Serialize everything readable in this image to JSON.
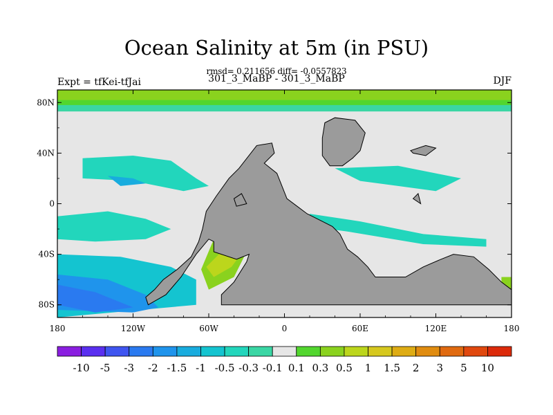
{
  "title": "Ocean Salinity at 5m (in PSU)",
  "stats": "rmsd= 0.211656  diff= -0.0557823",
  "subtitle": "301_3_MaBP - 301_3_MaBP",
  "left_label": "Expt = tfKei-tfJai",
  "right_label": "DJF",
  "chart_data": {
    "type": "heatmap",
    "title": "Ocean Salinity at 5m (in PSU)",
    "projection": "cylindrical equidistant",
    "xlim": [
      -180,
      180
    ],
    "ylim": [
      -90,
      90
    ],
    "x_ticks": [
      {
        "value": -180,
        "label": "180"
      },
      {
        "value": -120,
        "label": "120W"
      },
      {
        "value": -60,
        "label": "60W"
      },
      {
        "value": 0,
        "label": "0"
      },
      {
        "value": 60,
        "label": "60E"
      },
      {
        "value": 120,
        "label": "120E"
      },
      {
        "value": 180,
        "label": "180"
      }
    ],
    "y_ticks": [
      {
        "value": 80,
        "label": "80N"
      },
      {
        "value": 40,
        "label": "40N"
      },
      {
        "value": 0,
        "label": "0"
      },
      {
        "value": -40,
        "label": "40S"
      },
      {
        "value": -80,
        "label": "80S"
      }
    ],
    "colorbar": {
      "levels": [
        "-10",
        "-5",
        "-3",
        "-2",
        "-1.5",
        "-1",
        "-0.5",
        "-0.3",
        "-0.1",
        "0.1",
        "0.3",
        "0.5",
        "1",
        "1.5",
        "2",
        "3",
        "5",
        "10"
      ],
      "colors": [
        "#8a1ee0",
        "#5a2ff0",
        "#3f55f0",
        "#2a7af0",
        "#1f94ec",
        "#18acde",
        "#14c4d0",
        "#22d6bc",
        "#3ad6a4",
        "#e6e6e6",
        "#52d62e",
        "#8ad21e",
        "#bcd61c",
        "#d6c81e",
        "#deac14",
        "#e08c10",
        "#e06a10",
        "#e0480e",
        "#dc2a0a"
      ]
    },
    "land_polygons": [
      {
        "name": "american-continent",
        "points": [
          [
            -103,
            -68
          ],
          [
            -96,
            -60
          ],
          [
            -85,
            -52
          ],
          [
            -74,
            -42
          ],
          [
            -68,
            -30
          ],
          [
            -65,
            -20
          ],
          [
            -62,
            -6
          ],
          [
            -54,
            6
          ],
          [
            -44,
            20
          ],
          [
            -36,
            28
          ],
          [
            -22,
            46
          ],
          [
            -10,
            48
          ],
          [
            -8,
            40
          ],
          [
            -16,
            32
          ],
          [
            -6,
            24
          ],
          [
            2,
            4
          ],
          [
            10,
            -2
          ],
          [
            18,
            -8
          ],
          [
            30,
            -14
          ],
          [
            38,
            -18
          ],
          [
            44,
            -24
          ],
          [
            50,
            -36
          ],
          [
            58,
            -42
          ],
          [
            66,
            -50
          ],
          [
            72,
            -58
          ],
          [
            84,
            -58
          ],
          [
            96,
            -58
          ],
          [
            110,
            -50
          ],
          [
            124,
            -44
          ],
          [
            134,
            -40
          ],
          [
            150,
            -42
          ],
          [
            162,
            -52
          ],
          [
            172,
            -62
          ],
          [
            180,
            -68
          ],
          [
            180,
            -80
          ],
          [
            -50,
            -80
          ],
          [
            -50,
            -72
          ],
          [
            -40,
            -62
          ],
          [
            -30,
            -46
          ],
          [
            -28,
            -40
          ],
          [
            -38,
            -44
          ],
          [
            -56,
            -38
          ],
          [
            -56,
            -30
          ],
          [
            -60,
            -28
          ],
          [
            -70,
            -40
          ],
          [
            -82,
            -58
          ],
          [
            -94,
            -72
          ],
          [
            -108,
            -80
          ],
          [
            -110,
            -74
          ]
        ]
      },
      {
        "name": "northern-landmass",
        "points": [
          [
            32,
            64
          ],
          [
            40,
            68
          ],
          [
            56,
            66
          ],
          [
            64,
            56
          ],
          [
            60,
            42
          ],
          [
            54,
            36
          ],
          [
            46,
            30
          ],
          [
            36,
            30
          ],
          [
            30,
            38
          ],
          [
            30,
            52
          ]
        ]
      },
      {
        "name": "eastern-island",
        "points": [
          [
            100,
            42
          ],
          [
            112,
            46
          ],
          [
            120,
            44
          ],
          [
            112,
            38
          ],
          [
            102,
            40
          ]
        ]
      },
      {
        "name": "small-isle-west",
        "points": [
          [
            -40,
            4
          ],
          [
            -34,
            8
          ],
          [
            -30,
            0
          ],
          [
            -38,
            -2
          ]
        ]
      },
      {
        "name": "small-isle-east",
        "points": [
          [
            102,
            4
          ],
          [
            106,
            8
          ],
          [
            108,
            0
          ]
        ]
      }
    ],
    "contour_regions": [
      {
        "name": "arctic-band",
        "level": "0.3",
        "points": [
          [
            -180,
            90
          ],
          [
            180,
            90
          ],
          [
            180,
            75
          ],
          [
            -180,
            75
          ]
        ]
      },
      {
        "name": "arctic-inner",
        "level": "0.5",
        "points": [
          [
            -180,
            90
          ],
          [
            180,
            90
          ],
          [
            180,
            82
          ],
          [
            -180,
            82
          ]
        ]
      },
      {
        "name": "arctic-lower",
        "level": "-0.1",
        "points": [
          [
            -180,
            78
          ],
          [
            180,
            78
          ],
          [
            180,
            73
          ],
          [
            -180,
            73
          ]
        ]
      },
      {
        "name": "north-pacific-band",
        "level": "-0.3",
        "points": [
          [
            -160,
            36
          ],
          [
            -120,
            38
          ],
          [
            -90,
            34
          ],
          [
            -70,
            20
          ],
          [
            -60,
            14
          ],
          [
            -80,
            10
          ],
          [
            -120,
            18
          ],
          [
            -160,
            20
          ]
        ]
      },
      {
        "name": "north-pacific-inner",
        "level": "-1",
        "points": [
          [
            -140,
            22
          ],
          [
            -120,
            20
          ],
          [
            -110,
            16
          ],
          [
            -130,
            14
          ]
        ]
      },
      {
        "name": "tropical-pacific-band",
        "level": "-0.3",
        "points": [
          [
            -180,
            -10
          ],
          [
            -140,
            -6
          ],
          [
            -110,
            -12
          ],
          [
            -90,
            -20
          ],
          [
            -110,
            -28
          ],
          [
            -150,
            -30
          ],
          [
            -180,
            -28
          ]
        ]
      },
      {
        "name": "southern-pacific",
        "level": "-0.5",
        "points": [
          [
            -180,
            -40
          ],
          [
            -130,
            -42
          ],
          [
            -90,
            -50
          ],
          [
            -70,
            -60
          ],
          [
            -70,
            -80
          ],
          [
            -180,
            -90
          ]
        ]
      },
      {
        "name": "southern-pacific-deep",
        "level": "-1.5",
        "points": [
          [
            -180,
            -56
          ],
          [
            -140,
            -60
          ],
          [
            -110,
            -72
          ],
          [
            -100,
            -82
          ],
          [
            -120,
            -86
          ],
          [
            -180,
            -84
          ]
        ]
      },
      {
        "name": "southern-pacific-core",
        "level": "-2",
        "points": [
          [
            -180,
            -64
          ],
          [
            -150,
            -70
          ],
          [
            -120,
            -82
          ],
          [
            -150,
            -86
          ],
          [
            -180,
            -80
          ]
        ]
      },
      {
        "name": "south-atlantic-wedge",
        "level": "0.5",
        "points": [
          [
            -56,
            -28
          ],
          [
            -42,
            -32
          ],
          [
            -32,
            -42
          ],
          [
            -40,
            -58
          ],
          [
            -60,
            -68
          ],
          [
            -66,
            -52
          ]
        ]
      },
      {
        "name": "south-atlantic-wedge-inner",
        "level": "1",
        "points": [
          [
            -50,
            -38
          ],
          [
            -36,
            -42
          ],
          [
            -42,
            -50
          ],
          [
            -56,
            -58
          ],
          [
            -62,
            -50
          ]
        ]
      },
      {
        "name": "east-basin-band",
        "level": "-0.3",
        "points": [
          [
            40,
            28
          ],
          [
            90,
            30
          ],
          [
            120,
            24
          ],
          [
            140,
            20
          ],
          [
            120,
            10
          ],
          [
            90,
            14
          ],
          [
            60,
            18
          ]
        ]
      },
      {
        "name": "east-basin-south",
        "level": "-0.3",
        "points": [
          [
            20,
            -8
          ],
          [
            60,
            -14
          ],
          [
            110,
            -24
          ],
          [
            160,
            -28
          ],
          [
            160,
            -34
          ],
          [
            110,
            -32
          ],
          [
            50,
            -22
          ],
          [
            20,
            -18
          ]
        ]
      },
      {
        "name": "southeast-pocket",
        "level": "0.5",
        "points": [
          [
            172,
            -58
          ],
          [
            180,
            -58
          ],
          [
            180,
            -78
          ],
          [
            172,
            -72
          ]
        ]
      }
    ]
  }
}
